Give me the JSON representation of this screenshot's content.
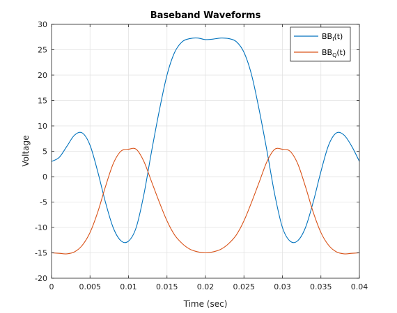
{
  "chart_data": {
    "type": "line",
    "title": "Baseband Waveforms",
    "xlabel": "Time (sec)",
    "ylabel": "Voltage",
    "xlim": [
      0,
      0.04
    ],
    "ylim": [
      -20,
      30
    ],
    "xticks": [
      "0",
      "0.005",
      "0.01",
      "0.015",
      "0.02",
      "0.025",
      "0.03",
      "0.035",
      "0.04"
    ],
    "yticks": [
      "-20",
      "-15",
      "-10",
      "-5",
      "0",
      "5",
      "10",
      "15",
      "20",
      "25",
      "30"
    ],
    "grid": true,
    "legend_position": "top-right",
    "series": [
      {
        "name": "BB_I(t)",
        "legend_main": "BB",
        "legend_sub": "I",
        "legend_tail": "(t)",
        "color": "#0072BD",
        "x": [
          0,
          0.001,
          0.002,
          0.003,
          0.004,
          0.005,
          0.006,
          0.007,
          0.008,
          0.009,
          0.01,
          0.011,
          0.012,
          0.013,
          0.014,
          0.015,
          0.016,
          0.017,
          0.018,
          0.019,
          0.02,
          0.021,
          0.022,
          0.023,
          0.024,
          0.025,
          0.026,
          0.027,
          0.028,
          0.029,
          0.03,
          0.031,
          0.032,
          0.033,
          0.034,
          0.035,
          0.036,
          0.037,
          0.038,
          0.039,
          0.04
        ],
        "y": [
          3,
          3.8,
          6,
          8.2,
          8.6,
          6.2,
          1,
          -5,
          -10,
          -12.6,
          -12.7,
          -10,
          -3.5,
          5,
          13,
          20,
          24.5,
          26.6,
          27.2,
          27.3,
          27,
          27.1,
          27.3,
          27.2,
          26.6,
          24.5,
          20,
          13,
          5,
          -3.5,
          -10,
          -12.7,
          -12.6,
          -10,
          -5,
          1,
          6.2,
          8.6,
          8.2,
          6,
          3
        ]
      },
      {
        "name": "BB_Q(t)",
        "legend_main": "BB",
        "legend_sub": "Q",
        "legend_tail": "(t)",
        "color": "#D95319",
        "x": [
          0,
          0.001,
          0.002,
          0.003,
          0.004,
          0.005,
          0.006,
          0.007,
          0.008,
          0.009,
          0.01,
          0.011,
          0.012,
          0.013,
          0.014,
          0.015,
          0.016,
          0.017,
          0.018,
          0.019,
          0.02,
          0.021,
          0.022,
          0.023,
          0.024,
          0.025,
          0.026,
          0.027,
          0.028,
          0.029,
          0.03,
          0.031,
          0.032,
          0.033,
          0.034,
          0.035,
          0.036,
          0.037,
          0.038,
          0.039,
          0.04
        ],
        "y": [
          -15,
          -15.1,
          -15.2,
          -14.8,
          -13.5,
          -11,
          -7,
          -2,
          2.5,
          5,
          5.4,
          5.4,
          3,
          -1,
          -5,
          -8.7,
          -11.5,
          -13.2,
          -14.3,
          -14.8,
          -15,
          -14.8,
          -14.3,
          -13.2,
          -11.5,
          -8.7,
          -5,
          -1,
          3,
          5.4,
          5.4,
          5,
          2.5,
          -2,
          -7,
          -11,
          -13.5,
          -14.8,
          -15.2,
          -15.1,
          -15
        ]
      }
    ]
  }
}
